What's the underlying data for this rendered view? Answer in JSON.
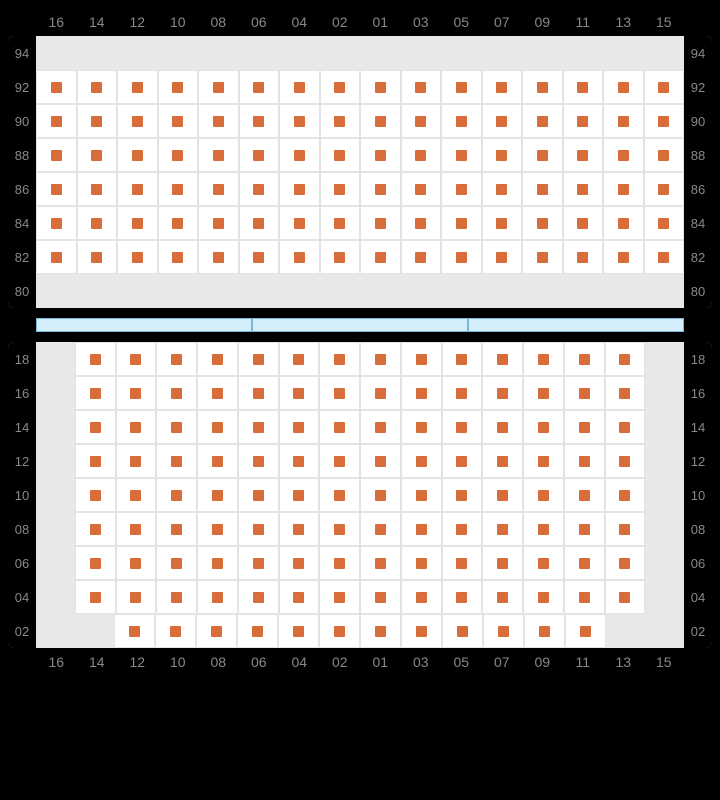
{
  "columns": [
    "16",
    "14",
    "12",
    "10",
    "08",
    "06",
    "04",
    "02",
    "01",
    "03",
    "05",
    "07",
    "09",
    "11",
    "13",
    "15"
  ],
  "top_block": {
    "rows": [
      "94",
      "92",
      "90",
      "88",
      "86",
      "84",
      "82",
      "80"
    ],
    "occupancy": [
      [
        0,
        0,
        0,
        0,
        0,
        0,
        0,
        0,
        0,
        0,
        0,
        0,
        0,
        0,
        0,
        0
      ],
      [
        1,
        1,
        1,
        1,
        1,
        1,
        1,
        1,
        1,
        1,
        1,
        1,
        1,
        1,
        1,
        1
      ],
      [
        1,
        1,
        1,
        1,
        1,
        1,
        1,
        1,
        1,
        1,
        1,
        1,
        1,
        1,
        1,
        1
      ],
      [
        1,
        1,
        1,
        1,
        1,
        1,
        1,
        1,
        1,
        1,
        1,
        1,
        1,
        1,
        1,
        1
      ],
      [
        1,
        1,
        1,
        1,
        1,
        1,
        1,
        1,
        1,
        1,
        1,
        1,
        1,
        1,
        1,
        1
      ],
      [
        1,
        1,
        1,
        1,
        1,
        1,
        1,
        1,
        1,
        1,
        1,
        1,
        1,
        1,
        1,
        1
      ],
      [
        1,
        1,
        1,
        1,
        1,
        1,
        1,
        1,
        1,
        1,
        1,
        1,
        1,
        1,
        1,
        1
      ],
      [
        0,
        0,
        0,
        0,
        0,
        0,
        0,
        0,
        0,
        0,
        0,
        0,
        0,
        0,
        0,
        0
      ]
    ]
  },
  "bottom_block": {
    "rows": [
      "18",
      "16",
      "14",
      "12",
      "10",
      "08",
      "06",
      "04",
      "02"
    ],
    "occupancy": [
      [
        0,
        1,
        1,
        1,
        1,
        1,
        1,
        1,
        1,
        1,
        1,
        1,
        1,
        1,
        1,
        0
      ],
      [
        0,
        1,
        1,
        1,
        1,
        1,
        1,
        1,
        1,
        1,
        1,
        1,
        1,
        1,
        1,
        0
      ],
      [
        0,
        1,
        1,
        1,
        1,
        1,
        1,
        1,
        1,
        1,
        1,
        1,
        1,
        1,
        1,
        0
      ],
      [
        0,
        1,
        1,
        1,
        1,
        1,
        1,
        1,
        1,
        1,
        1,
        1,
        1,
        1,
        1,
        0
      ],
      [
        0,
        1,
        1,
        1,
        1,
        1,
        1,
        1,
        1,
        1,
        1,
        1,
        1,
        1,
        1,
        0
      ],
      [
        0,
        1,
        1,
        1,
        1,
        1,
        1,
        1,
        1,
        1,
        1,
        1,
        1,
        1,
        1,
        0
      ],
      [
        0,
        1,
        1,
        1,
        1,
        1,
        1,
        1,
        1,
        1,
        1,
        1,
        1,
        1,
        1,
        0
      ],
      [
        0,
        1,
        1,
        1,
        1,
        1,
        1,
        1,
        1,
        1,
        1,
        1,
        1,
        1,
        1,
        0
      ],
      [
        0,
        0,
        1,
        1,
        1,
        1,
        1,
        1,
        1,
        1,
        1,
        1,
        1,
        1,
        0,
        0
      ]
    ]
  },
  "separator_segments": 3,
  "colors": {
    "seat": "#d96d3a",
    "cell_on_bg": "#ffffff",
    "cell_off_bg": "#e8e8e8",
    "border": "#e3e3e3",
    "label": "#888888",
    "page_bg": "#000000",
    "separator_fill": "#d4eefc",
    "separator_border": "#7cb9d8"
  }
}
